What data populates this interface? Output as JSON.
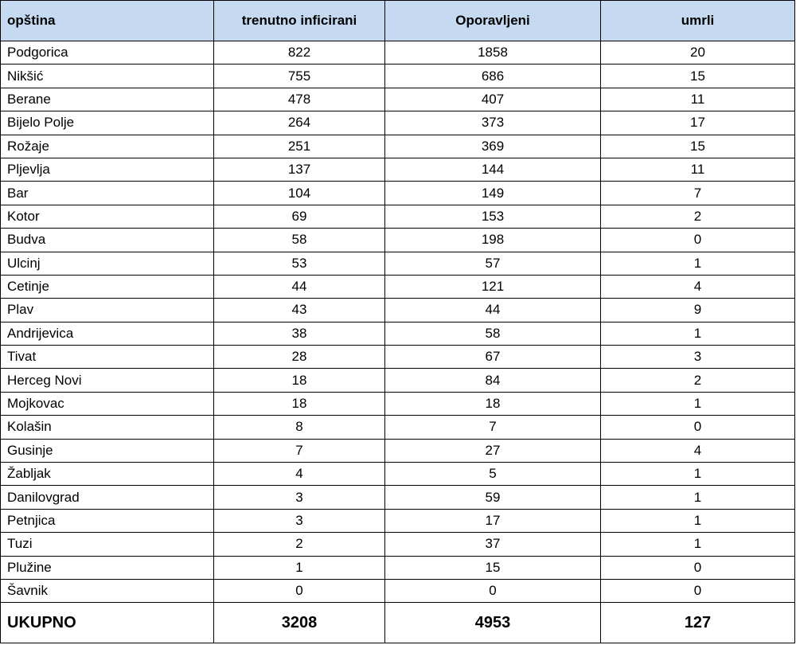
{
  "table": {
    "header": [
      "opština",
      "trenutno inficirani",
      "Oporavljeni",
      "umrli"
    ],
    "rows": [
      [
        "Podgorica",
        822,
        1858,
        20
      ],
      [
        "Nikšić",
        755,
        686,
        15
      ],
      [
        "Berane",
        478,
        407,
        11
      ],
      [
        "Bijelo Polje",
        264,
        373,
        17
      ],
      [
        "Rožaje",
        251,
        369,
        15
      ],
      [
        "Pljevlja",
        137,
        144,
        11
      ],
      [
        "Bar",
        104,
        149,
        7
      ],
      [
        "Kotor",
        69,
        153,
        2
      ],
      [
        "Budva",
        58,
        198,
        0
      ],
      [
        "Ulcinj",
        53,
        57,
        1
      ],
      [
        "Cetinje",
        44,
        121,
        4
      ],
      [
        "Plav",
        43,
        44,
        9
      ],
      [
        "Andrijevica",
        38,
        58,
        1
      ],
      [
        "Tivat",
        28,
        67,
        3
      ],
      [
        "Herceg Novi",
        18,
        84,
        2
      ],
      [
        "Mojkovac",
        18,
        18,
        1
      ],
      [
        "Kolašin",
        8,
        7,
        0
      ],
      [
        "Gusinje",
        7,
        27,
        4
      ],
      [
        "Žabljak",
        4,
        5,
        1
      ],
      [
        "Danilovgrad",
        3,
        59,
        1
      ],
      [
        "Petnjica",
        3,
        17,
        1
      ],
      [
        "Tuzi",
        2,
        37,
        1
      ],
      [
        "Plužine",
        1,
        15,
        0
      ],
      [
        "Šavnik",
        0,
        0,
        0
      ]
    ],
    "total": [
      "UKUPNO",
      3208,
      4953,
      127
    ]
  }
}
